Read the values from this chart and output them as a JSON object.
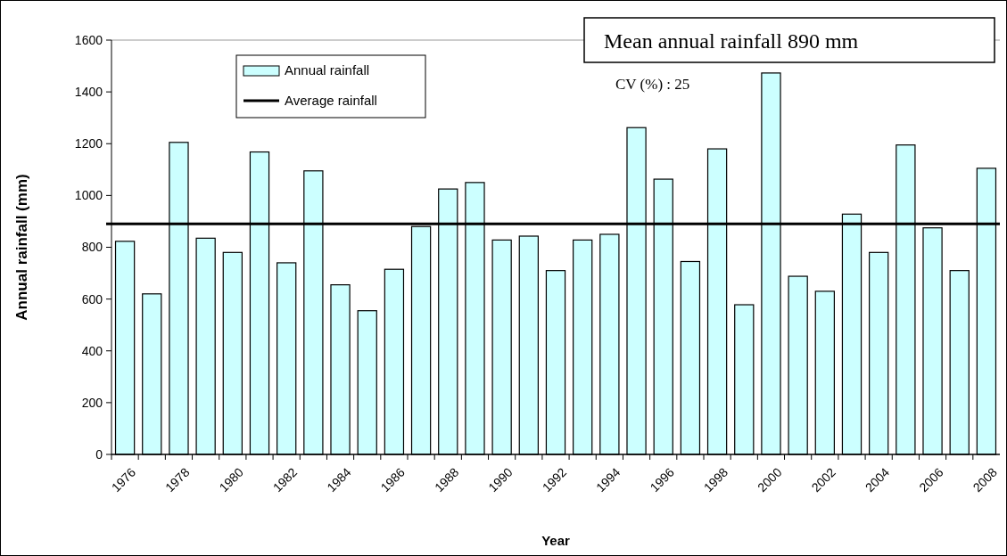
{
  "chart_data": {
    "type": "bar",
    "xlabel": "Year",
    "ylabel": "Annual rainfall (mm)",
    "annotations": [
      "Mean annual rainfall 890 mm",
      "CV (%) : 25"
    ],
    "categories": [
      "1976",
      null,
      "1978",
      null,
      "1980",
      null,
      "1982",
      null,
      "1984",
      null,
      "1986",
      null,
      "1988",
      null,
      "1990",
      null,
      "1992",
      null,
      "1994",
      null,
      "1996",
      null,
      "1998",
      null,
      "2000",
      null,
      "2002",
      null,
      "2004",
      null,
      "2006",
      null,
      "2008"
    ],
    "series": [
      {
        "name": "Annual rainfall",
        "color": "#ccffff",
        "values": [
          823,
          620,
          1205,
          835,
          780,
          1168,
          740,
          1095,
          655,
          555,
          715,
          880,
          1025,
          1050,
          828,
          843,
          710,
          828,
          850,
          1262,
          1063,
          745,
          1180,
          578,
          1473,
          688,
          630,
          928,
          780,
          1195,
          875,
          710,
          1105
        ]
      }
    ],
    "ref_lines": [
      {
        "axis": "y",
        "value": 890,
        "label": "Average rainfall",
        "color": "#000000",
        "line_style": "solid"
      }
    ],
    "ylim": [
      0,
      1600
    ],
    "yticks": [
      0,
      200,
      400,
      600,
      800,
      1000,
      1200,
      1400,
      1600
    ],
    "grid": false,
    "legend": "top left"
  }
}
